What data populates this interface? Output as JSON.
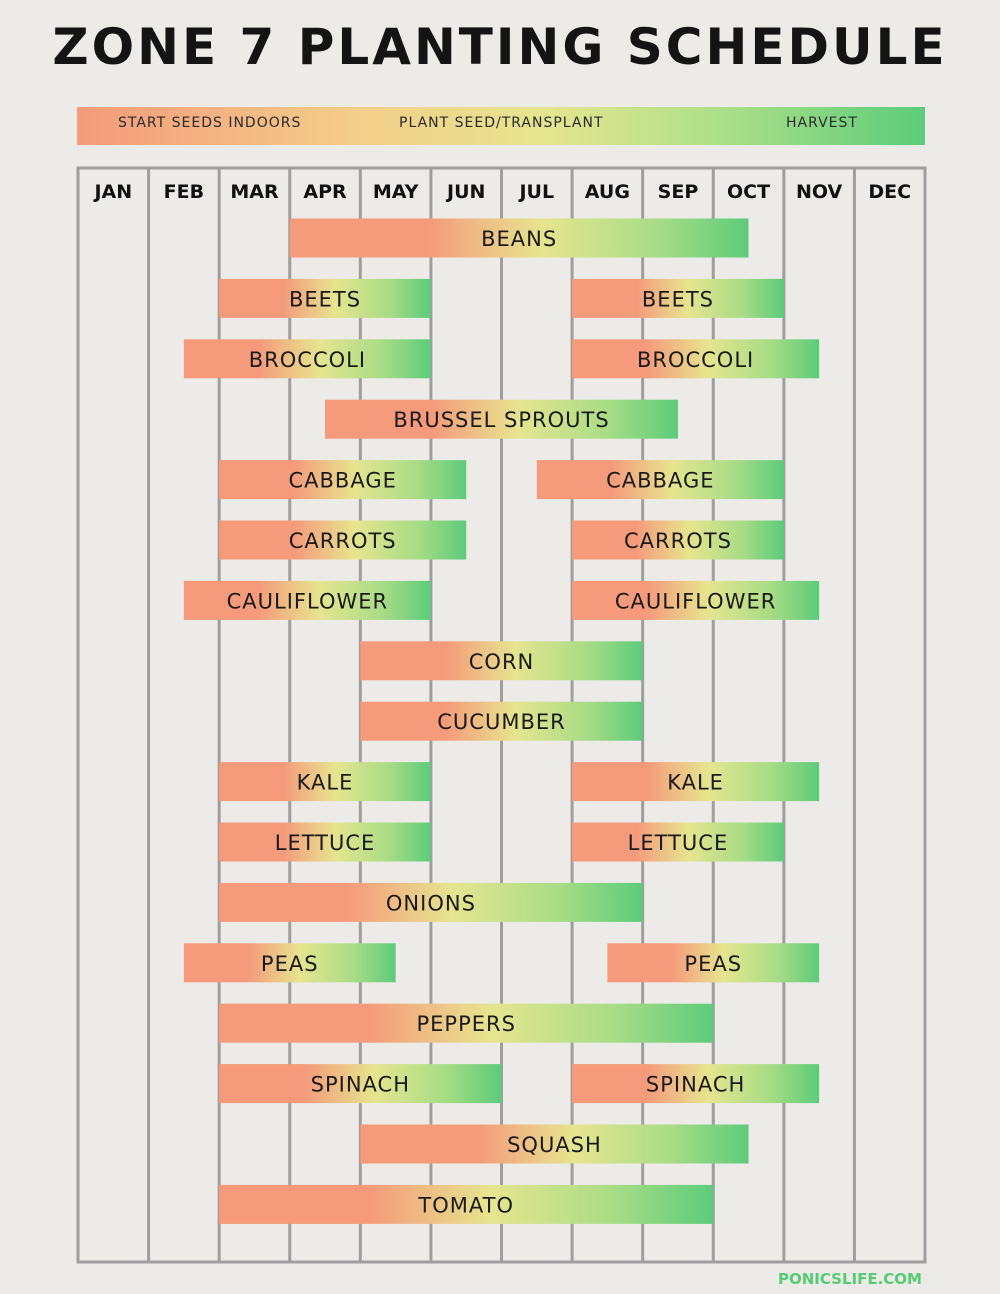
{
  "title": "ZONE 7 PLANTING SCHEDULE",
  "legend": {
    "start": "START SEEDS INDOORS",
    "plant": "PLANT SEED/TRANSPLANT",
    "harvest": "HARVEST"
  },
  "colors": {
    "start": "#f59a7b",
    "plant": "#e6e58f",
    "harvest": "#5ccc7a",
    "grid": "#9e9e9e",
    "text": "#1a1a1a"
  },
  "footer": "PONICSLIFE.COM",
  "chart_data": {
    "type": "bar",
    "orientation": "horizontal timeline",
    "months": [
      "JAN",
      "FEB",
      "MAR",
      "APR",
      "MAY",
      "JUN",
      "JUL",
      "AUG",
      "SEP",
      "OCT",
      "NOV",
      "DEC"
    ],
    "crops": [
      {
        "label": "BEANS",
        "bars": [
          [
            3.0,
            9.5
          ]
        ]
      },
      {
        "label": "BEETS",
        "bars": [
          [
            2.0,
            5.0
          ],
          [
            7.0,
            10.0
          ]
        ]
      },
      {
        "label": "BROCCOLI",
        "bars": [
          [
            1.5,
            5.0
          ],
          [
            7.0,
            10.5
          ]
        ]
      },
      {
        "label": "BRUSSEL SPROUTS",
        "bars": [
          [
            3.5,
            8.5
          ]
        ]
      },
      {
        "label": "CABBAGE",
        "bars": [
          [
            2.0,
            5.5
          ],
          [
            6.5,
            10.0
          ]
        ]
      },
      {
        "label": "CARROTS",
        "bars": [
          [
            2.0,
            5.5
          ],
          [
            7.0,
            10.0
          ]
        ]
      },
      {
        "label": "CAULIFLOWER",
        "bars": [
          [
            1.5,
            5.0
          ],
          [
            7.0,
            10.5
          ]
        ]
      },
      {
        "label": "CORN",
        "bars": [
          [
            4.0,
            8.0
          ]
        ]
      },
      {
        "label": "CUCUMBER",
        "bars": [
          [
            4.0,
            8.0
          ]
        ]
      },
      {
        "label": "KALE",
        "bars": [
          [
            2.0,
            5.0
          ],
          [
            7.0,
            10.5
          ]
        ]
      },
      {
        "label": "LETTUCE",
        "bars": [
          [
            2.0,
            5.0
          ],
          [
            7.0,
            10.0
          ]
        ]
      },
      {
        "label": "ONIONS",
        "bars": [
          [
            2.0,
            8.0
          ]
        ]
      },
      {
        "label": "PEAS",
        "bars": [
          [
            1.5,
            4.5
          ],
          [
            7.5,
            10.5
          ]
        ]
      },
      {
        "label": "PEPPERS",
        "bars": [
          [
            2.0,
            9.0
          ]
        ]
      },
      {
        "label": "SPINACH",
        "bars": [
          [
            2.0,
            6.0
          ],
          [
            7.0,
            10.5
          ]
        ]
      },
      {
        "label": "SQUASH",
        "bars": [
          [
            4.0,
            9.5
          ]
        ]
      },
      {
        "label": "TOMATO",
        "bars": [
          [
            2.0,
            9.0
          ]
        ]
      }
    ]
  }
}
